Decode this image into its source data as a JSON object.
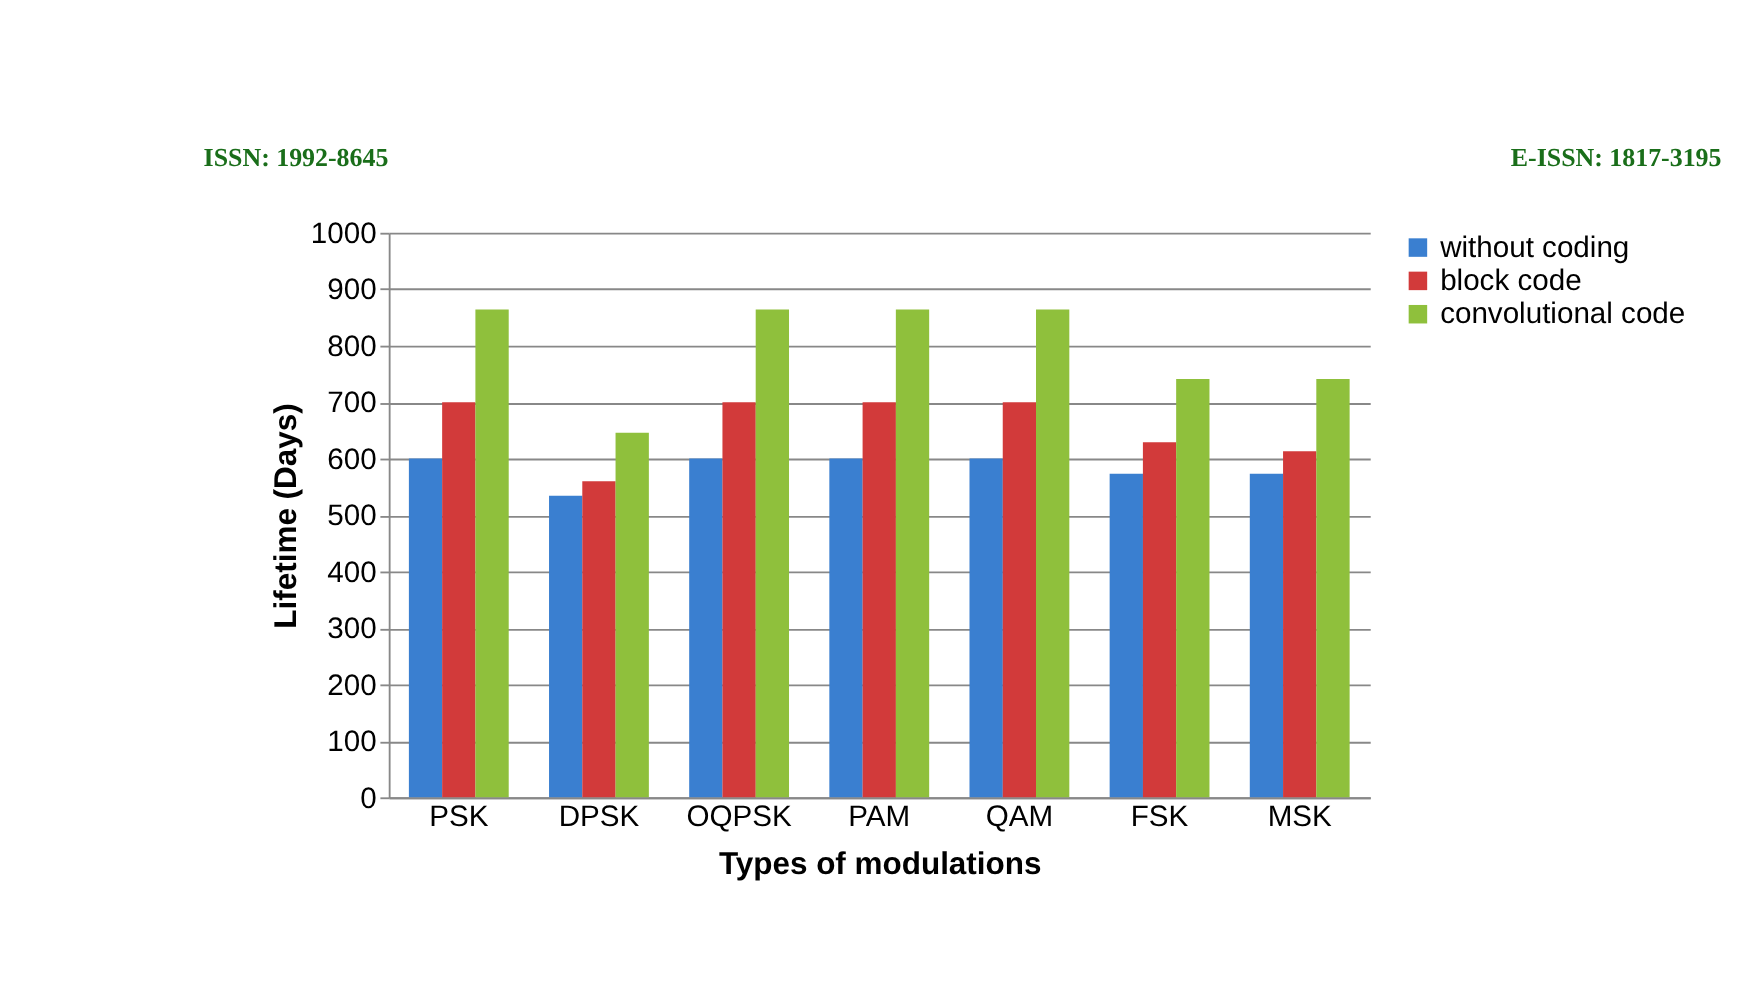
{
  "chart_data": {
    "type": "bar",
    "xlabel": "Types of modulations",
    "ylabel": "Lifetime (Days)",
    "categories": [
      "PSK",
      "DPSK",
      "OQPSK",
      "PAM",
      "QAM",
      "FSK",
      "MSK"
    ],
    "series": [
      {
        "name": "without coding",
        "color": "#3a7fd0",
        "values": [
          600,
          534,
          600,
          600,
          600,
          573,
          573
        ]
      },
      {
        "name": "block code",
        "color": "#d23a3a",
        "values": [
          700,
          560,
          700,
          700,
          700,
          629,
          613
        ]
      },
      {
        "name": "convolutional code",
        "color": "#8fc03c",
        "values": [
          864,
          646,
          864,
          864,
          864,
          741,
          741
        ]
      }
    ],
    "ylim": [
      0,
      1000
    ],
    "yticks": [
      0,
      100,
      200,
      300,
      400,
      500,
      600,
      700,
      800,
      900,
      1000
    ],
    "grid": "y",
    "legend": "right",
    "annotations": [
      "ISSN: 1992-8645",
      "E-ISSN: 1817-3195"
    ]
  }
}
